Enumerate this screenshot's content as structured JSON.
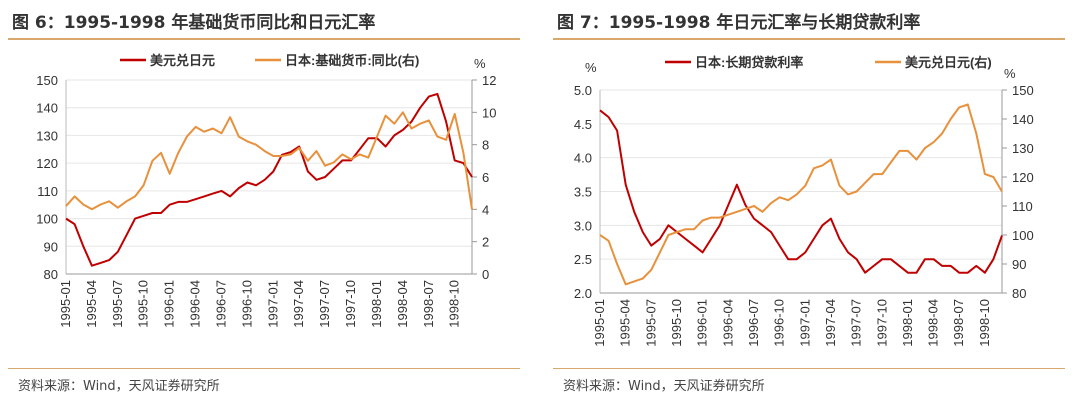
{
  "chart_data": [
    {
      "type": "line",
      "title": "图 6：1995-1998 年基础货币同比和日元汇率",
      "source": "资料来源：Wind，天风证券研究所",
      "right_unit": "%",
      "ylim": [
        80,
        150
      ],
      "y2lim": [
        0,
        12
      ],
      "yticks": [
        "80",
        "90",
        "100",
        "110",
        "120",
        "130",
        "140",
        "150"
      ],
      "y2ticks": [
        "0",
        "2",
        "4",
        "6",
        "8",
        "10",
        "12"
      ],
      "xticks": [
        "1995-01",
        "1995-04",
        "1995-07",
        "1995-10",
        "1996-01",
        "1996-04",
        "1996-07",
        "1996-10",
        "1997-01",
        "1997-04",
        "1997-07",
        "1997-10",
        "1998-01",
        "1998-04",
        "1998-07",
        "1998-10"
      ],
      "series": [
        {
          "name": "美元兑日元",
          "axis": "left",
          "color": "#c00000",
          "values": [
            100,
            98,
            90,
            83,
            84,
            85,
            88,
            94,
            100,
            101,
            102,
            102,
            105,
            106,
            106,
            107,
            108,
            109,
            110,
            108,
            111,
            113,
            112,
            114,
            117,
            123,
            124,
            126,
            117,
            114,
            115,
            118,
            121,
            121,
            125,
            129,
            129,
            126,
            130,
            132,
            135,
            140,
            144,
            145,
            135,
            121,
            120,
            115
          ]
        },
        {
          "name": "日本:基础货币:同比(右)",
          "axis": "right",
          "color": "#e8913c",
          "values": [
            4.2,
            4.8,
            4.3,
            4.0,
            4.3,
            4.5,
            4.1,
            4.5,
            4.8,
            5.5,
            7.0,
            7.5,
            6.2,
            7.5,
            8.5,
            9.1,
            8.8,
            9.0,
            8.7,
            9.7,
            8.5,
            8.2,
            8.0,
            7.6,
            7.3,
            7.3,
            7.4,
            7.8,
            7.0,
            7.6,
            6.7,
            6.9,
            7.4,
            7.1,
            7.4,
            7.2,
            8.5,
            9.8,
            9.3,
            10.0,
            9.0,
            9.3,
            9.5,
            8.5,
            8.3,
            9.9,
            7.5,
            4.0
          ]
        }
      ]
    },
    {
      "type": "line",
      "title": "图 7：1995-1998 年日元汇率与长期贷款利率",
      "source": "资料来源：Wind，天风证券研究所",
      "left_unit": "%",
      "right_unit": "%",
      "ylim": [
        2.0,
        5.0
      ],
      "y2lim": [
        80,
        150
      ],
      "yticks": [
        "2.0",
        "2.5",
        "3.0",
        "3.5",
        "4.0",
        "4.5",
        "5.0"
      ],
      "y2ticks": [
        "80",
        "90",
        "100",
        "110",
        "120",
        "130",
        "140",
        "150"
      ],
      "xticks": [
        "1995-01",
        "1995-04",
        "1995-07",
        "1995-10",
        "1996-01",
        "1996-04",
        "1996-07",
        "1996-10",
        "1997-01",
        "1997-04",
        "1997-07",
        "1997-10",
        "1998-01",
        "1998-04",
        "1998-07",
        "1998-10"
      ],
      "series": [
        {
          "name": "日本:长期贷款利率",
          "axis": "left",
          "color": "#c00000",
          "values": [
            4.7,
            4.6,
            4.4,
            3.6,
            3.2,
            2.9,
            2.7,
            2.8,
            3.0,
            2.9,
            2.8,
            2.7,
            2.6,
            2.8,
            3.0,
            3.3,
            3.6,
            3.3,
            3.1,
            3.0,
            2.9,
            2.7,
            2.5,
            2.5,
            2.6,
            2.8,
            3.0,
            3.1,
            2.8,
            2.6,
            2.5,
            2.3,
            2.4,
            2.5,
            2.5,
            2.4,
            2.3,
            2.3,
            2.5,
            2.5,
            2.4,
            2.4,
            2.3,
            2.3,
            2.4,
            2.3,
            2.5,
            2.85
          ]
        },
        {
          "name": "美元兑日元(右)",
          "axis": "right",
          "color": "#e8913c",
          "values": [
            100,
            98,
            90,
            83,
            84,
            85,
            88,
            94,
            100,
            101,
            102,
            102,
            105,
            106,
            106,
            107,
            108,
            109,
            110,
            108,
            111,
            113,
            112,
            114,
            117,
            123,
            124,
            126,
            117,
            114,
            115,
            118,
            121,
            121,
            125,
            129,
            129,
            126,
            130,
            132,
            135,
            140,
            144,
            145,
            135,
            121,
            120,
            115
          ]
        }
      ]
    }
  ]
}
